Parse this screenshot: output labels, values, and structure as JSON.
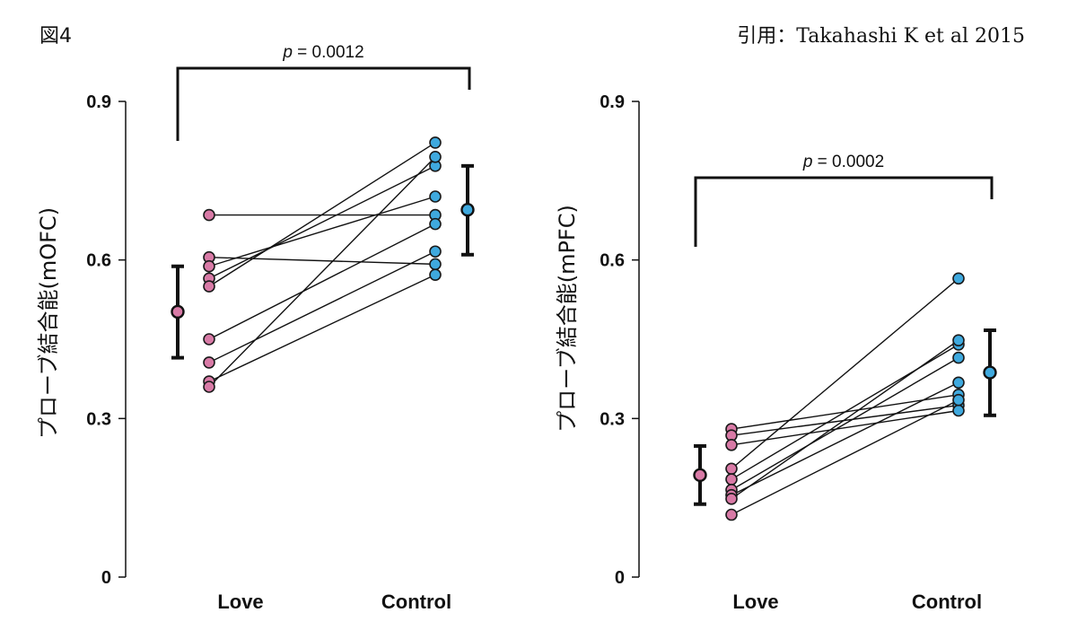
{
  "figure_label": "図4",
  "citation": "引用：Takahashi K et al 2015",
  "colors": {
    "love": "#d87aa6",
    "control": "#3fa9de",
    "outline": "#1a1a1a",
    "line": "#111111"
  },
  "chart_data": [
    {
      "type": "scatter",
      "ylabel": "プローブ結合能(mOFC)",
      "ylim": [
        0,
        0.9
      ],
      "yticks": [
        "0",
        "0.3",
        "0.6",
        "0.9"
      ],
      "categories": [
        "Love",
        "Control"
      ],
      "p_label": "p",
      "p_value": " = 0.0012",
      "pairs": [
        [
          0.685,
          0.685
        ],
        [
          0.605,
          0.592
        ],
        [
          0.588,
          0.72
        ],
        [
          0.565,
          0.778
        ],
        [
          0.55,
          0.822
        ],
        [
          0.45,
          0.668
        ],
        [
          0.406,
          0.616
        ],
        [
          0.37,
          0.572
        ],
        [
          0.36,
          0.795
        ]
      ],
      "mean_sd": {
        "love": {
          "mean": 0.502,
          "low": 0.415,
          "high": 0.588
        },
        "control": {
          "mean": 0.695,
          "low": 0.61,
          "high": 0.778
        }
      }
    },
    {
      "type": "scatter",
      "ylabel": "プローブ結合能(mPFC)",
      "ylim": [
        0,
        0.9
      ],
      "yticks": [
        "0",
        "0.3",
        "0.6",
        "0.9"
      ],
      "categories": [
        "Love",
        "Control"
      ],
      "p_label": "p",
      "p_value": " = 0.0002",
      "pairs": [
        [
          0.28,
          0.345
        ],
        [
          0.268,
          0.325
        ],
        [
          0.25,
          0.315
        ],
        [
          0.205,
          0.565
        ],
        [
          0.185,
          0.44
        ],
        [
          0.165,
          0.415
        ],
        [
          0.155,
          0.368
        ],
        [
          0.148,
          0.448
        ],
        [
          0.118,
          0.335
        ]
      ],
      "mean_sd": {
        "love": {
          "mean": 0.193,
          "low": 0.138,
          "high": 0.248
        },
        "control": {
          "mean": 0.387,
          "low": 0.306,
          "high": 0.467
        }
      }
    }
  ]
}
